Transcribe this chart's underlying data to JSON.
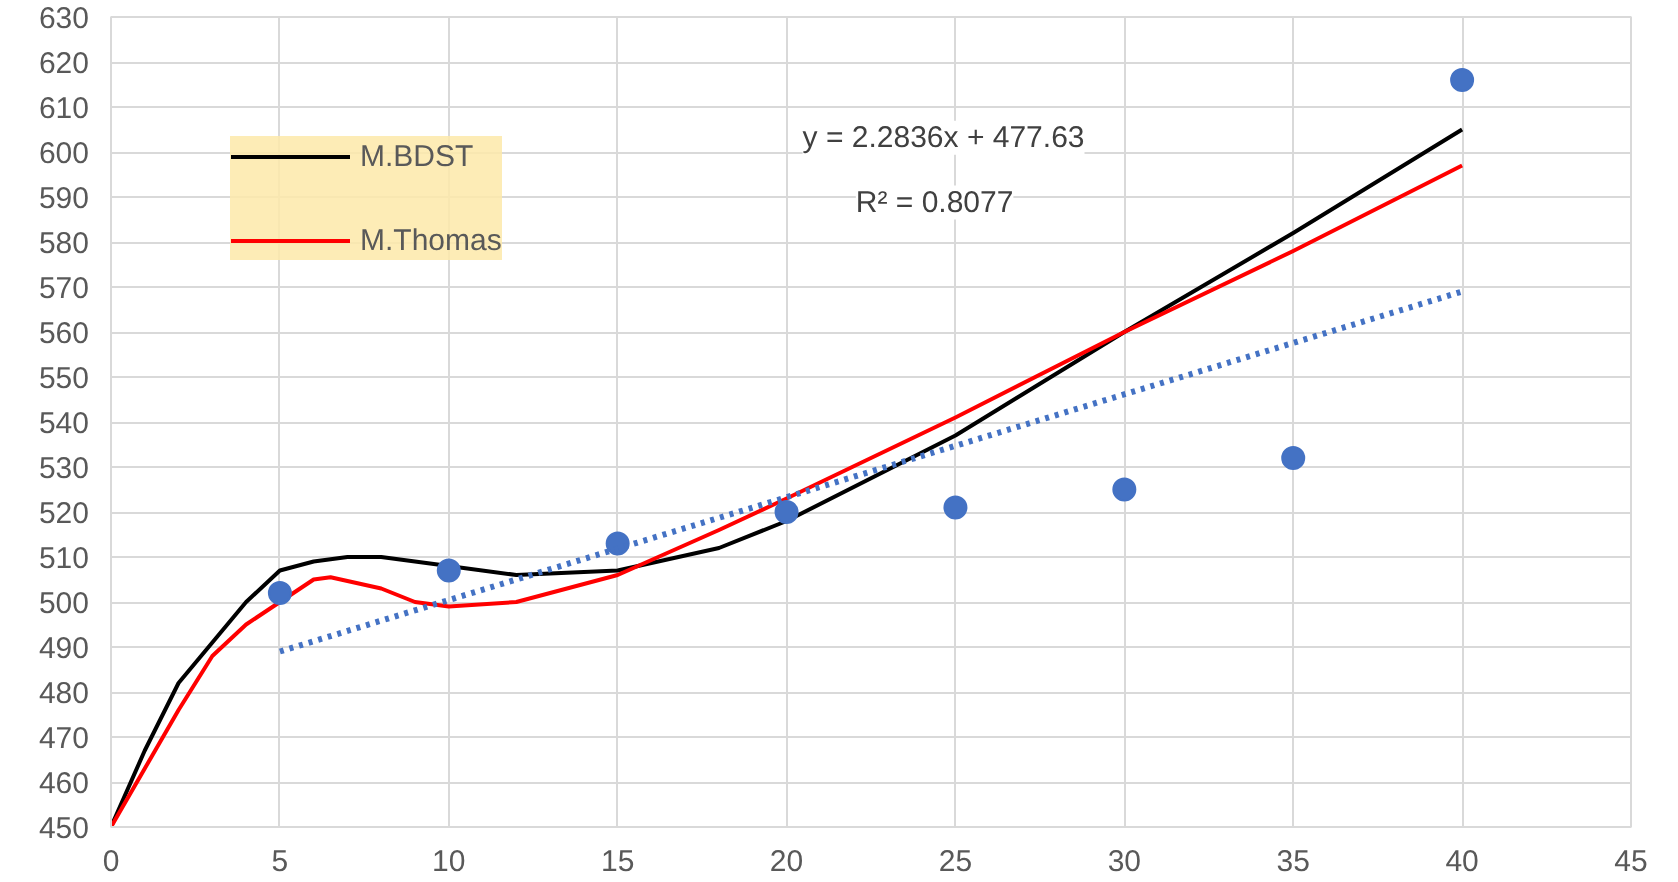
{
  "chart_data": {
    "type": "line",
    "xlim": [
      0,
      45
    ],
    "ylim": [
      450,
      630
    ],
    "xticks": [
      0,
      5,
      10,
      15,
      20,
      25,
      30,
      35,
      40,
      45
    ],
    "yticks": [
      450,
      460,
      470,
      480,
      490,
      500,
      510,
      520,
      530,
      540,
      550,
      560,
      570,
      580,
      590,
      600,
      610,
      620,
      630
    ],
    "grid": true,
    "legend": "top left",
    "marker": "none",
    "series": [
      {
        "name": "M.BDST",
        "color": "#000000",
        "x": [
          0,
          1,
          2,
          3,
          4,
          5,
          6,
          7,
          8,
          10,
          12,
          15,
          18,
          20,
          25,
          30,
          35,
          40
        ],
        "values": [
          450,
          467,
          482,
          491,
          500,
          507,
          509,
          510,
          510,
          508,
          506,
          507,
          512,
          518,
          537,
          560,
          582,
          605
        ]
      },
      {
        "name": "M.Thomas",
        "color": "#ff0000",
        "x": [
          0,
          1,
          2,
          3,
          4,
          5,
          6,
          6.5,
          8,
          9,
          10,
          12,
          15,
          18,
          20,
          25,
          30,
          35,
          40
        ],
        "values": [
          450,
          463,
          476,
          488,
          495,
          500,
          505,
          505.5,
          503,
          500,
          499,
          500,
          506,
          516,
          523,
          541,
          560,
          578,
          597
        ]
      },
      {
        "type": "scatter",
        "color": "#4472c4",
        "marker": "circle",
        "x": [
          5,
          10,
          15,
          20,
          25,
          30,
          35,
          40
        ],
        "values": [
          502,
          507,
          513,
          520,
          521,
          525,
          532,
          616
        ]
      },
      {
        "type": "line",
        "color": "#4472c4",
        "line_style": "dotted",
        "x": [
          5,
          40
        ],
        "values": [
          489,
          569
        ]
      }
    ],
    "annotations": [
      "y = 2.2836x + 477.63",
      "R² = 0.8077"
    ]
  }
}
